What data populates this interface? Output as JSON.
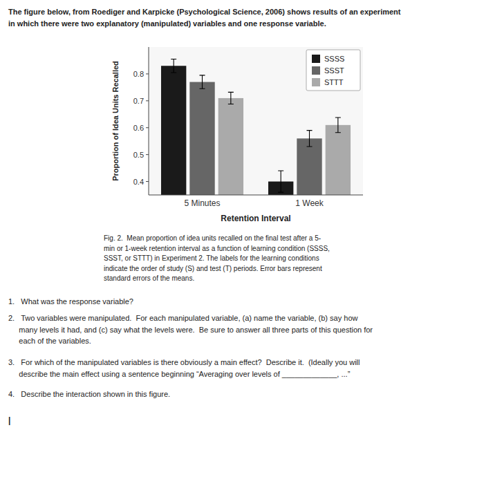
{
  "chart_data": {
    "type": "bar",
    "categories": [
      "5 Minutes",
      "1 Week"
    ],
    "series": [
      {
        "name": "SSSS",
        "color": "#1a1a1a",
        "values": [
          0.83,
          0.4
        ],
        "errors": [
          0.025,
          0.04
        ]
      },
      {
        "name": "SSST",
        "color": "#666666",
        "values": [
          0.77,
          0.56
        ],
        "errors": [
          0.025,
          0.03
        ]
      },
      {
        "name": "STTT",
        "color": "#aaaaaa",
        "values": [
          0.71,
          0.61
        ],
        "errors": [
          0.022,
          0.028
        ]
      }
    ],
    "x_label": "Retention Interval",
    "y_label": "Proportion of Idea Units Recalled",
    "ylim": [
      0.35,
      0.9
    ],
    "yticks": [
      0.4,
      0.5,
      0.6,
      0.7,
      0.8
    ],
    "grid": false,
    "legend": "upper right",
    "annotations": [
      "The figure below, from Roediger and Karpicke (Psychological Science, 2006) shows results of an experiment",
      "in which there were two explanatory (manipulated) variables and one response variable.",
      "Fig. 2.  Mean proportion of idea units recalled on the final test after a 5-\nmin or 1-week retention interval as a function of learning condition (SSSS,\nSSST, or STTT) in Experiment 2. The labels for the learning conditions\nindicate the order of study (S) and test (T) periods. Error bars represent\nstandard errors of the means.",
      "1.   What was the response variable?",
      "2.   Two variables were manipulated.  For each manipulated variable, (a) name the variable, (b) say how\n     many levels it had, and (c) say what the levels were.  Be sure to answer all three parts of this question for\n     each of the variables.",
      "3.   For which of the manipulated variables is there obviously a main effect?  Describe it.  (Ideally you will\n     describe the main effect using a sentence beginning “Averaging over levels of _____________, ...”",
      "4.   Describe the interaction shown in this figure.",
      "|"
    ]
  }
}
